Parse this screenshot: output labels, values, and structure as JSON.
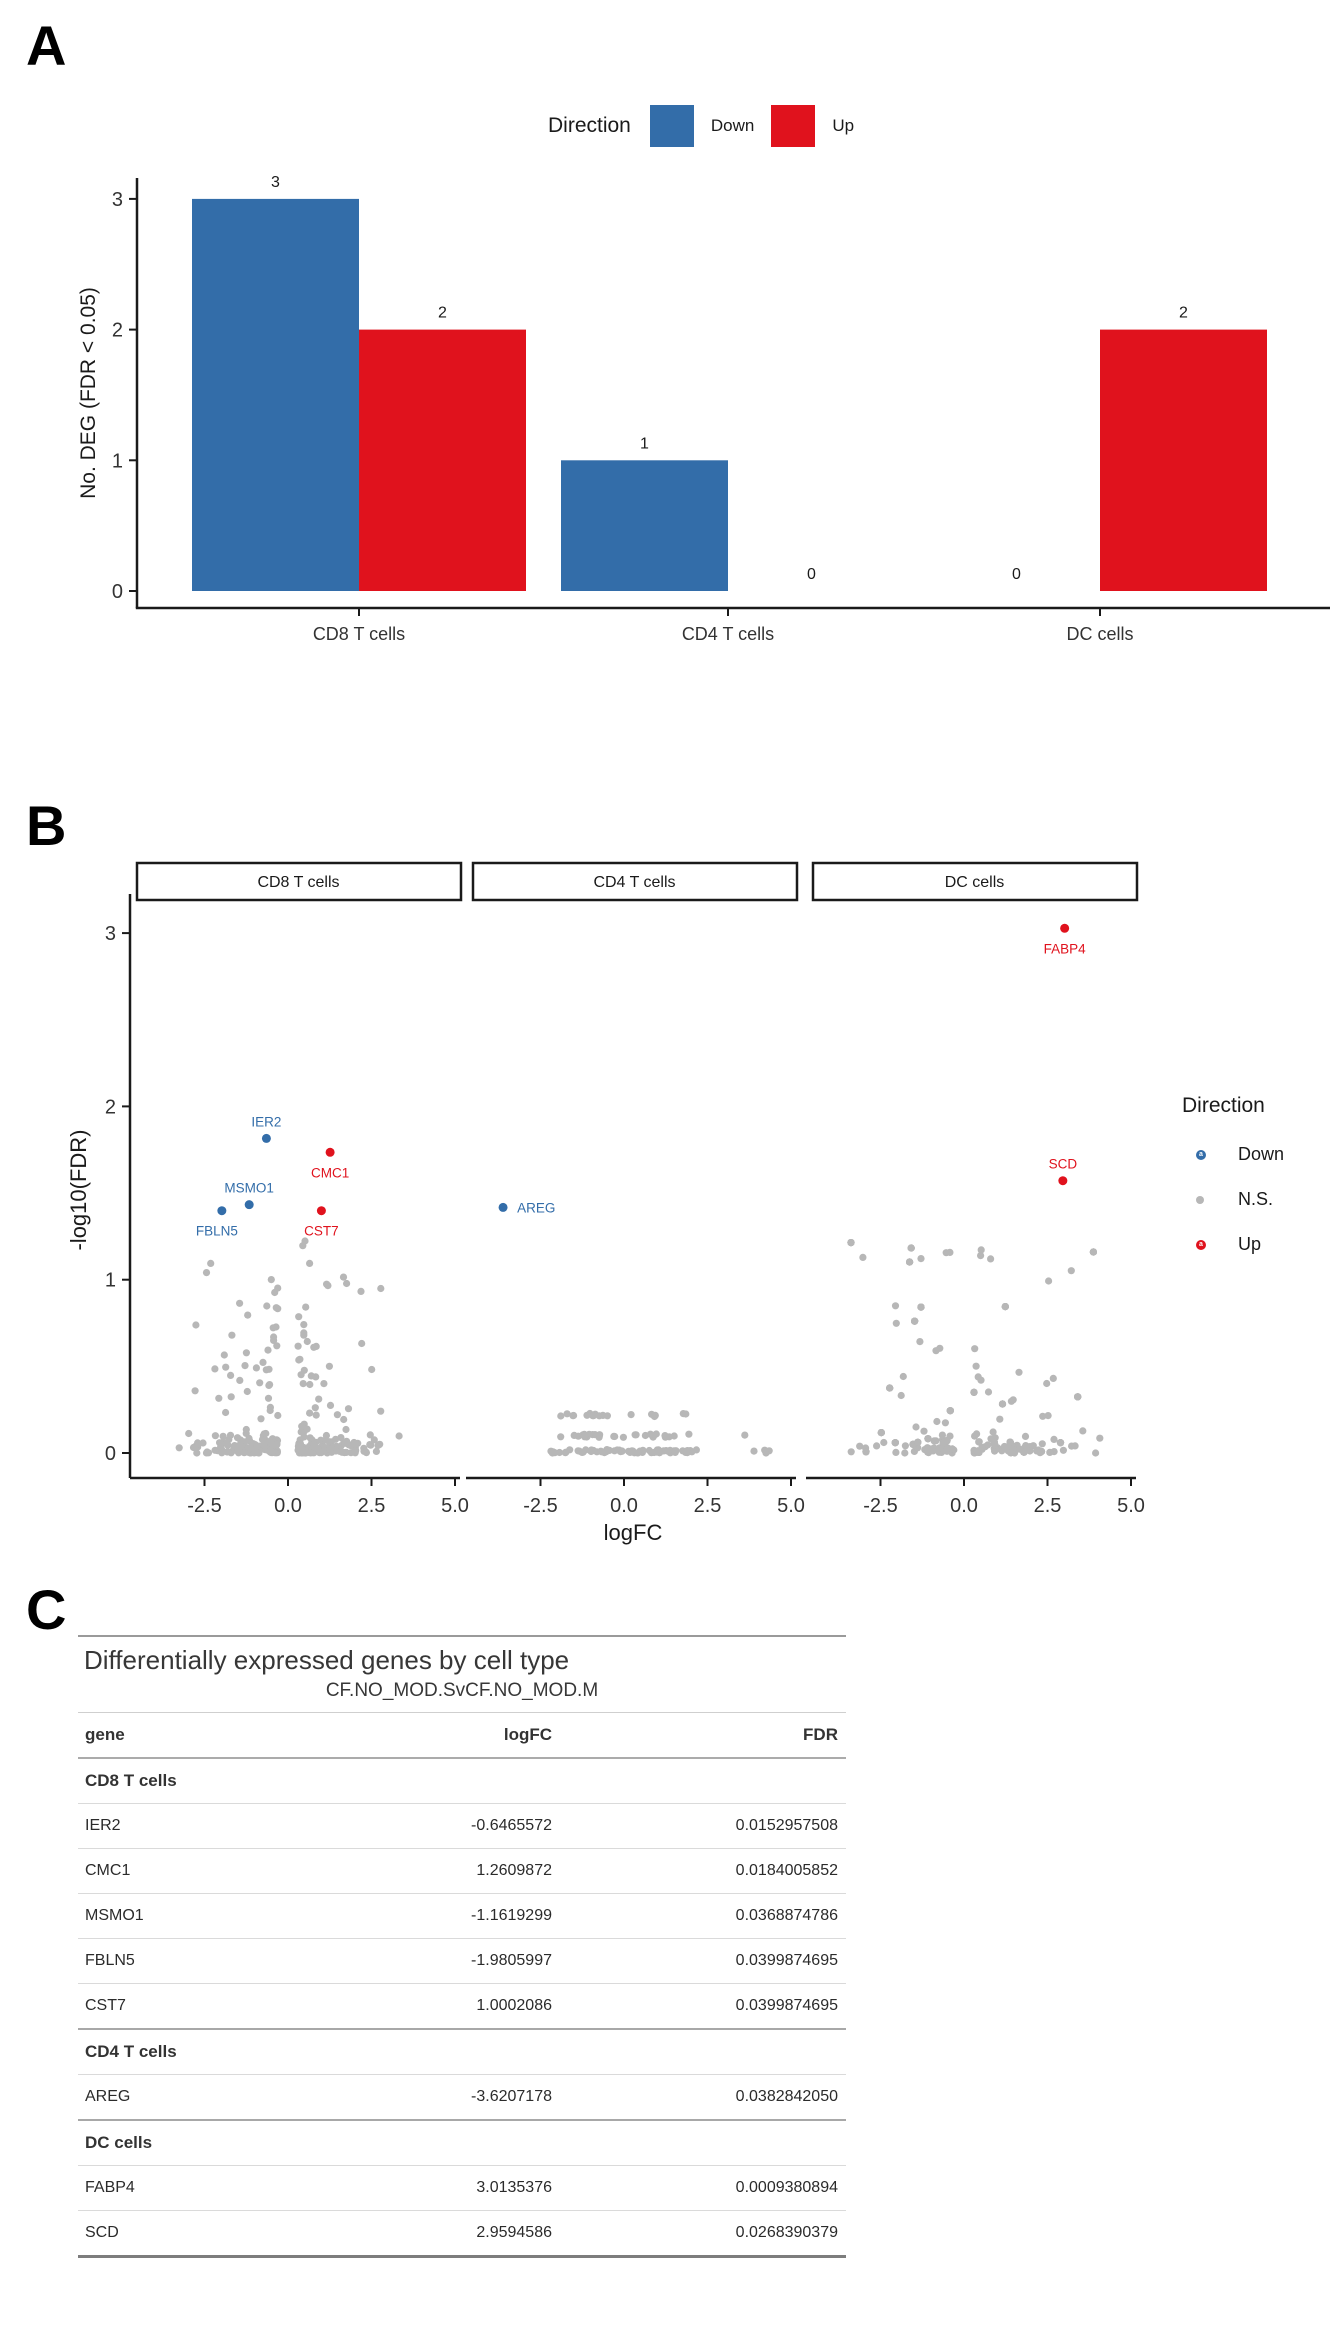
{
  "figure": {
    "panel_a_label": "A",
    "panel_b_label": "B",
    "panel_c_label": "C"
  },
  "colors": {
    "down": "#336DA9",
    "up": "#E0121D",
    "ns": "#B7B7B7",
    "axis": "#1A1A1A",
    "tick_text": "#333333",
    "table_rule": "#9a9a9a"
  },
  "chart_data": [
    {
      "type": "bar",
      "title": "",
      "legend": {
        "title": "Direction",
        "items": [
          {
            "label": "Down",
            "color": "#336DA9"
          },
          {
            "label": "Up",
            "color": "#E0121D"
          }
        ]
      },
      "ylabel": "No. DEG (FDR < 0.05)",
      "categories": [
        "CD8 T cells",
        "CD4 T cells",
        "DC cells"
      ],
      "series": [
        {
          "name": "Down",
          "color": "#336DA9",
          "values": [
            3,
            1,
            0
          ]
        },
        {
          "name": "Up",
          "color": "#E0121D",
          "values": [
            2,
            0,
            2
          ]
        }
      ],
      "yticks": [
        0,
        1,
        2,
        3
      ],
      "ylim": [
        0,
        3.3
      ],
      "bar_value_labels": [
        [
          "3",
          "1",
          "0"
        ],
        [
          "2",
          "0",
          "2"
        ]
      ],
      "grid": false,
      "legend_position": "top"
    },
    {
      "type": "scatter",
      "subtype": "faceted-volcano",
      "xlabel": "logFC",
      "ylabel": "-log10(FDR)",
      "xticks": [
        "-2.5",
        "0.0",
        "2.5",
        "5.0"
      ],
      "xtick_values": [
        -2.5,
        0.0,
        2.5,
        5.0
      ],
      "yticks": [
        0,
        1,
        2,
        3
      ],
      "xlim": [
        -4.55,
        5.15
      ],
      "ylim": [
        -0.15,
        3.2
      ],
      "grid": false,
      "legend_position": "right",
      "legend": {
        "title": "Direction",
        "items": [
          {
            "label": "Down",
            "color": "#336DA9",
            "letter": "a"
          },
          {
            "label": "N.S.",
            "color": "#B7B7B7",
            "letter": ""
          },
          {
            "label": "Up",
            "color": "#E0121D",
            "letter": "a"
          }
        ]
      },
      "facets": [
        {
          "label": "CD8 T cells",
          "genes": [
            {
              "name": "IER2",
              "logFC": -0.6465572,
              "fdr": 0.0152957508,
              "direction": "Down",
              "lab": "above"
            },
            {
              "name": "CMC1",
              "logFC": 1.2609872,
              "fdr": 0.0184005852,
              "direction": "Up",
              "lab": "below"
            },
            {
              "name": "MSMO1",
              "logFC": -1.1619299,
              "fdr": 0.0368874786,
              "direction": "Down",
              "lab": "above"
            },
            {
              "name": "FBLN5",
              "logFC": -1.9805997,
              "fdr": 0.0399874695,
              "direction": "Down",
              "lab": "belowleft"
            },
            {
              "name": "CST7",
              "logFC": 1.0002086,
              "fdr": 0.0399874695,
              "direction": "Up",
              "lab": "below"
            }
          ],
          "background": {
            "n": 330,
            "seed": 11,
            "x_min": -3.6,
            "x_max": 3.4,
            "y_max": 1.28,
            "gap": 0.3,
            "base_frac": 0.55,
            "style": "dense"
          }
        },
        {
          "label": "CD4 T cells",
          "genes": [
            {
              "name": "AREG",
              "logFC": -3.6207178,
              "fdr": 0.038284205,
              "direction": "Down",
              "lab": "right"
            }
          ],
          "background": {
            "n": 120,
            "seed": 23,
            "x_min": -2.3,
            "x_max": 2.2,
            "y_max": 0.25,
            "rows": [
              0.1,
              0.22
            ],
            "base_frac": 0.62,
            "style": "sparse"
          }
        },
        {
          "label": "DC cells",
          "genes": [
            {
              "name": "FABP4",
              "logFC": 3.0135376,
              "fdr": 0.0009380894,
              "direction": "Up",
              "lab": "below"
            },
            {
              "name": "SCD",
              "logFC": 2.9594586,
              "fdr": 0.0268390379,
              "direction": "Up",
              "lab": "above"
            }
          ],
          "background": {
            "n": 380,
            "seed": 37,
            "x_min": -3.7,
            "x_max": 4.8,
            "y_max": 1.28,
            "gap": 0.3,
            "base_frac": 0.55,
            "style": "dense"
          }
        }
      ]
    },
    {
      "type": "table",
      "title": "Differentially expressed genes by cell type",
      "subtitle": "CF.NO_MOD.SvCF.NO_MOD.M",
      "columns": [
        "gene",
        "logFC",
        "FDR"
      ],
      "groups": [
        {
          "name": "CD8 T cells",
          "rows": [
            [
              "IER2",
              "-0.6465572",
              "0.0152957508"
            ],
            [
              "CMC1",
              "1.2609872",
              "0.0184005852"
            ],
            [
              "MSMO1",
              "-1.1619299",
              "0.0368874786"
            ],
            [
              "FBLN5",
              "-1.9805997",
              "0.0399874695"
            ],
            [
              "CST7",
              "1.0002086",
              "0.0399874695"
            ]
          ]
        },
        {
          "name": "CD4 T cells",
          "rows": [
            [
              "AREG",
              "-3.6207178",
              "0.0382842050"
            ]
          ]
        },
        {
          "name": "DC cells",
          "rows": [
            [
              "FABP4",
              "3.0135376",
              "0.0009380894"
            ],
            [
              "SCD",
              "2.9594586",
              "0.0268390379"
            ]
          ]
        }
      ]
    }
  ]
}
